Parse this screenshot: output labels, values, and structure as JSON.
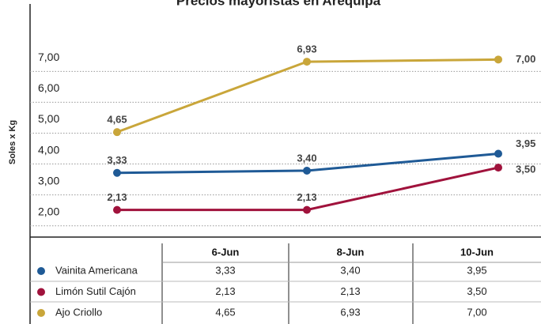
{
  "chart_data": {
    "type": "line",
    "title": "Precios mayoristas en Arequipa",
    "ylabel": "Soles x Kg",
    "categories": [
      "6-Jun",
      "8-Jun",
      "10-Jun"
    ],
    "series": [
      {
        "name": "Vainita Americana",
        "color": "#1f5a96",
        "values": [
          3.33,
          3.4,
          3.95
        ],
        "value_labels": [
          "3,33",
          "3,40",
          "3,95"
        ]
      },
      {
        "name": "Limón Sutil Cajón",
        "color": "#a0123c",
        "values": [
          2.13,
          2.13,
          3.5
        ],
        "value_labels": [
          "2,13",
          "2,13",
          "3,50"
        ]
      },
      {
        "name": "Ajo Criollo",
        "color": "#c9a63a",
        "values": [
          4.65,
          6.93,
          7.0
        ],
        "value_labels": [
          "4,65",
          "6,93",
          "7,00"
        ]
      }
    ],
    "ylim": [
      1.25,
      8.8
    ],
    "yticks": [
      {
        "value": 2,
        "label": "2,00"
      },
      {
        "value": 3,
        "label": "3,00"
      },
      {
        "value": 4,
        "label": "4,00"
      },
      {
        "value": 5,
        "label": "5,00"
      },
      {
        "value": 6,
        "label": "6,00"
      },
      {
        "value": 7,
        "label": "7,00"
      }
    ],
    "grid": true
  }
}
